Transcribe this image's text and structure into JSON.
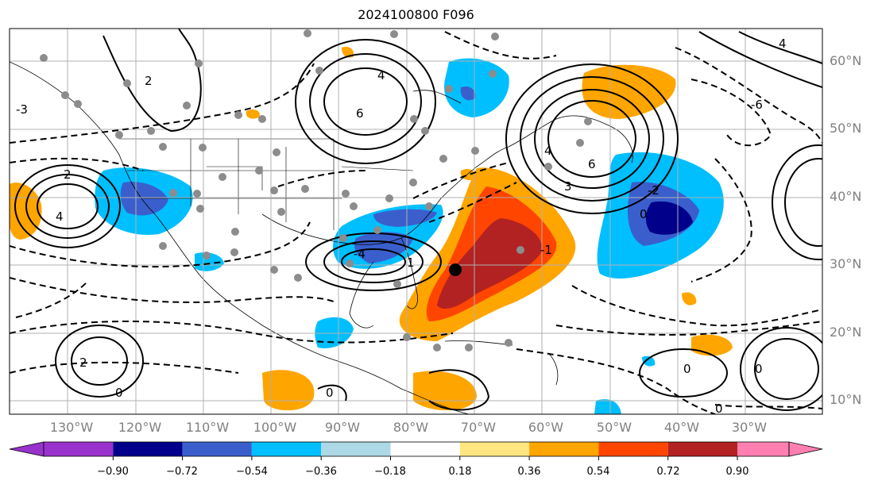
{
  "title": "2024100800 F096",
  "latitude_labels": [
    "10°N",
    "20°N",
    "30°N",
    "40°N",
    "50°N",
    "60°N"
  ],
  "longitude_labels": [
    "130°W",
    "120°W",
    "110°W",
    "100°W",
    "90°W",
    "80°W",
    "70°W",
    "60°W",
    "50°W",
    "40°W",
    "30°W"
  ],
  "colorbar": {
    "ticks": [
      "−0.90",
      "−0.72",
      "−0.54",
      "−0.36",
      "−0.18",
      "0.18",
      "0.36",
      "0.54",
      "0.72",
      "0.90"
    ],
    "colors": [
      "#9932cc",
      "#00008b",
      "#3a5fcd",
      "#00bfff",
      "#add8e6",
      "#ffffff",
      "#ffe680",
      "#ffa500",
      "#ff4500",
      "#b22222",
      "#ff80b0"
    ]
  },
  "contour_labels": [
    "-4",
    "-2",
    "0",
    "2",
    "4",
    "6",
    "-1",
    "-3",
    "3",
    "1",
    "-6"
  ],
  "markers": {
    "storm_center_color": "#000000",
    "station_color": "#8c8c8c"
  }
}
